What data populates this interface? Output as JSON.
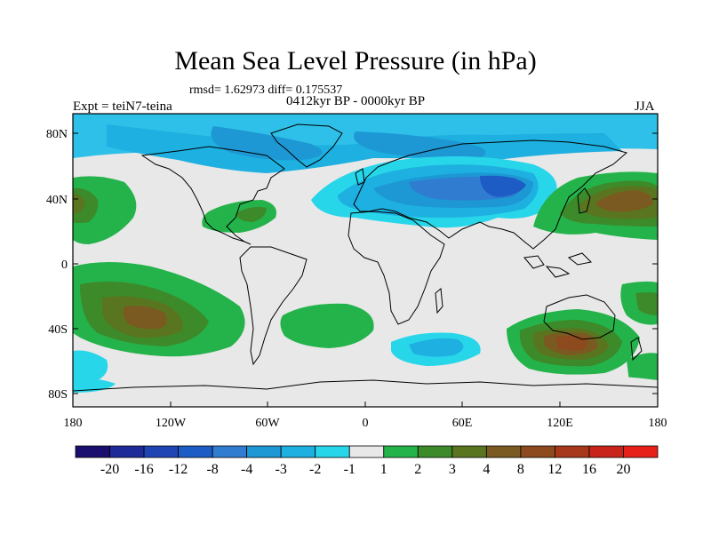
{
  "title": "Mean Sea Level Pressure (in hPa)",
  "stats_line": "rmsd= 1.62973 diff= 0.175537",
  "period_line": "0412kyr BP - 0000kyr BP",
  "experiment": "Expt = teiN7-teina",
  "season": "JJA",
  "lat_labels": [
    "80N",
    "40N",
    "0",
    "40S",
    "80S"
  ],
  "lon_labels": [
    "180",
    "120W",
    "60W",
    "0",
    "60E",
    "120E",
    "180"
  ],
  "colorbar": {
    "colors": [
      "#1a0f6e",
      "#1f2a99",
      "#1f45b5",
      "#1d5cc4",
      "#2f7cd1",
      "#1d98d4",
      "#1db0e0",
      "#28d6ea",
      "#e8e8e8",
      "#24b34a",
      "#3d8a2a",
      "#5a7520",
      "#7a5a20",
      "#8c4a1e",
      "#a8381c",
      "#c8241a",
      "#e8201a"
    ],
    "labels": [
      "-20",
      "-16",
      "-12",
      "-8",
      "-4",
      "-3",
      "-2",
      "-1",
      "1",
      "2",
      "3",
      "4",
      "8",
      "12",
      "16",
      "20"
    ]
  }
}
